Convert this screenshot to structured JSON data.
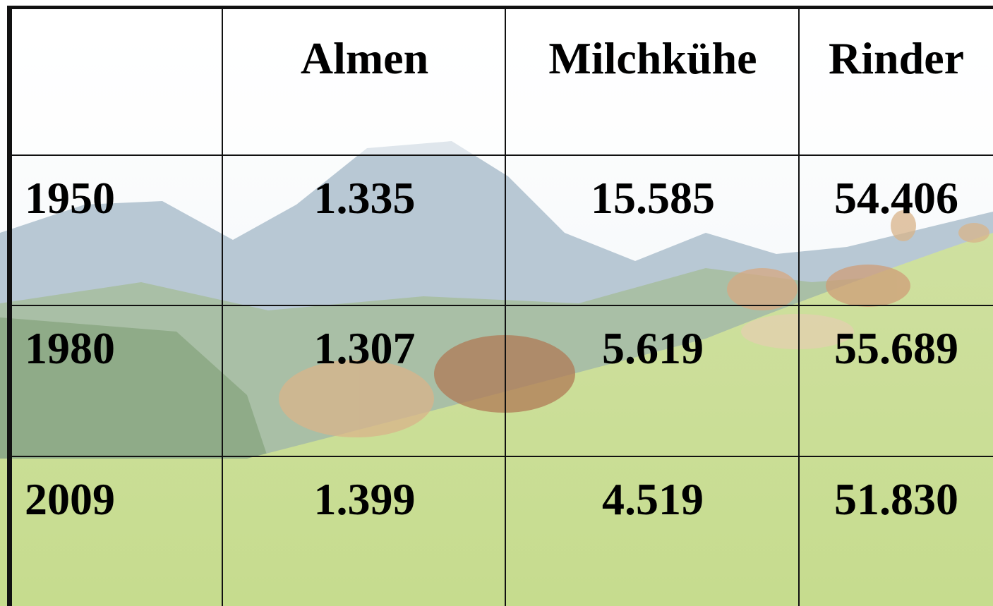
{
  "table": {
    "columns": [
      "Almen",
      "Milchkühe",
      "Rinder"
    ],
    "rows": [
      {
        "label": "1950",
        "cells": [
          "1.335",
          "15.585",
          "54.406"
        ]
      },
      {
        "label": "1980",
        "cells": [
          "1.307",
          "5.619",
          "55.689"
        ]
      },
      {
        "label": "2009",
        "cells": [
          "1.399",
          "4.519",
          "51.830"
        ]
      }
    ]
  }
}
